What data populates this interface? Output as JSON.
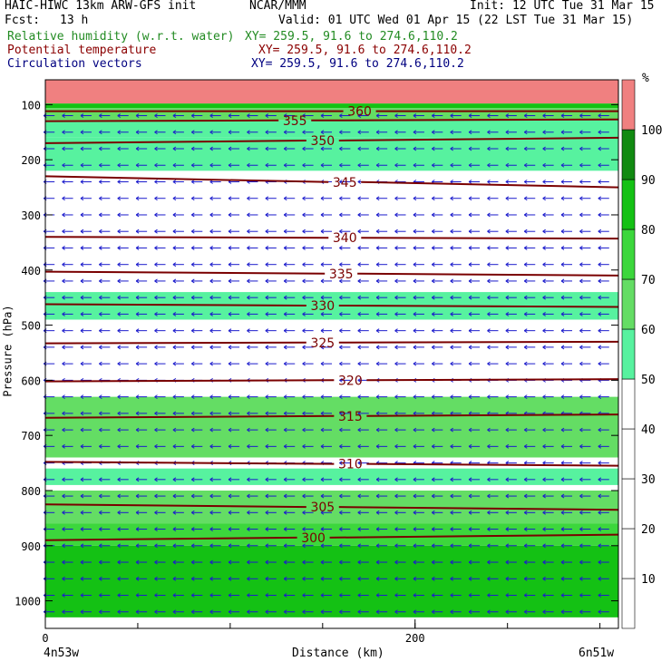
{
  "header": {
    "model": "HAIC-HIWC 13km ARW-GFS init",
    "org": "NCAR/MMM",
    "init": "Init: 12 UTC Tue 31 Mar 15",
    "fcst_label": "Fcst:",
    "fcst_value": "13 h",
    "valid": "Valid: 01 UTC Wed 01 Apr 15 (22 LST Tue 31 Mar 15)",
    "fields": [
      {
        "name": "Relative humidity (w.r.t. water)",
        "xy": "XY= 259.5, 91.6 to 274.6,110.2",
        "color": "#228b22"
      },
      {
        "name": "Potential temperature",
        "xy": "XY= 259.5, 91.6 to 274.6,110.2",
        "color": "#8b0000"
      },
      {
        "name": "Circulation vectors",
        "xy": "XY= 259.5, 91.6 to 274.6,110.2",
        "color": "#000080"
      }
    ]
  },
  "axes": {
    "ylabel": "Pressure (hPa)",
    "xlabel": "Distance (km)",
    "left_endpoint": "4n53w",
    "right_endpoint": "6n51w"
  },
  "colorbar": {
    "unit": "%",
    "ticks": [
      "10",
      "20",
      "30",
      "40",
      "50",
      "60",
      "70",
      "80",
      "90",
      "100"
    ]
  },
  "chart_data": {
    "type": "heatmap",
    "x": {
      "label": "Distance (km)",
      "range": [
        0,
        310
      ],
      "ticks": [
        0,
        200
      ]
    },
    "y": {
      "label": "Pressure (hPa)",
      "range": [
        1050,
        55
      ],
      "ticks": [
        100,
        200,
        300,
        400,
        500,
        600,
        700,
        800,
        900,
        1000
      ]
    },
    "rh_levels": {
      "bounds": [
        50,
        60,
        70,
        80,
        90,
        100,
        110
      ],
      "colors": [
        "#57f29f",
        "#64dd64",
        "#3cd73c",
        "#14c114",
        "#118a11",
        "#f08080"
      ]
    },
    "rh_field_bands": [
      {
        "p": [
          55,
          98
        ],
        "rh": 100
      },
      {
        "p": [
          98,
          106
        ],
        "rh": 80
      },
      {
        "p": [
          106,
          128
        ],
        "rh": 60
      },
      {
        "p": [
          128,
          160
        ],
        "rh": 55
      },
      {
        "p": [
          160,
          220
        ],
        "rh": 52
      },
      {
        "p": [
          440,
          490
        ],
        "rh": 52
      },
      {
        "p": [
          630,
          740
        ],
        "rh": 60
      },
      {
        "p": [
          760,
          790
        ],
        "rh": 55
      },
      {
        "p": [
          800,
          860
        ],
        "rh": 65
      },
      {
        "p": [
          860,
          900
        ],
        "rh": 75
      },
      {
        "p": [
          900,
          1030
        ],
        "rh": 85
      }
    ],
    "theta_contours": [
      {
        "value": 300,
        "p_start": 890,
        "p_end": 880,
        "label_x": 145
      },
      {
        "value": 305,
        "p_start": 825,
        "p_end": 835,
        "label_x": 150
      },
      {
        "value": 310,
        "p_start": 748,
        "p_end": 755,
        "label_x": 165
      },
      {
        "value": 315,
        "p_start": 668,
        "p_end": 662,
        "label_x": 165
      },
      {
        "value": 320,
        "p_start": 602,
        "p_end": 598,
        "label_x": 165
      },
      {
        "value": 325,
        "p_start": 533,
        "p_end": 530,
        "label_x": 150
      },
      {
        "value": 330,
        "p_start": 462,
        "p_end": 467,
        "label_x": 150
      },
      {
        "value": 335,
        "p_start": 403,
        "p_end": 410,
        "label_x": 160
      },
      {
        "value": 340,
        "p_start": 340,
        "p_end": 343,
        "label_x": 162
      },
      {
        "value": 345,
        "p_start": 230,
        "p_end": 250,
        "label_x": 162
      },
      {
        "value": 350,
        "p_start": 170,
        "p_end": 160,
        "label_x": 150
      },
      {
        "value": 355,
        "p_start": 130,
        "p_end": 127,
        "label_x": 135
      },
      {
        "value": 360,
        "p_start": 112,
        "p_end": 112,
        "label_x": 170
      }
    ],
    "vectors": {
      "dominant_direction": "westward",
      "x_spacing_km": 10,
      "p_spacing_hpa": 30
    }
  }
}
